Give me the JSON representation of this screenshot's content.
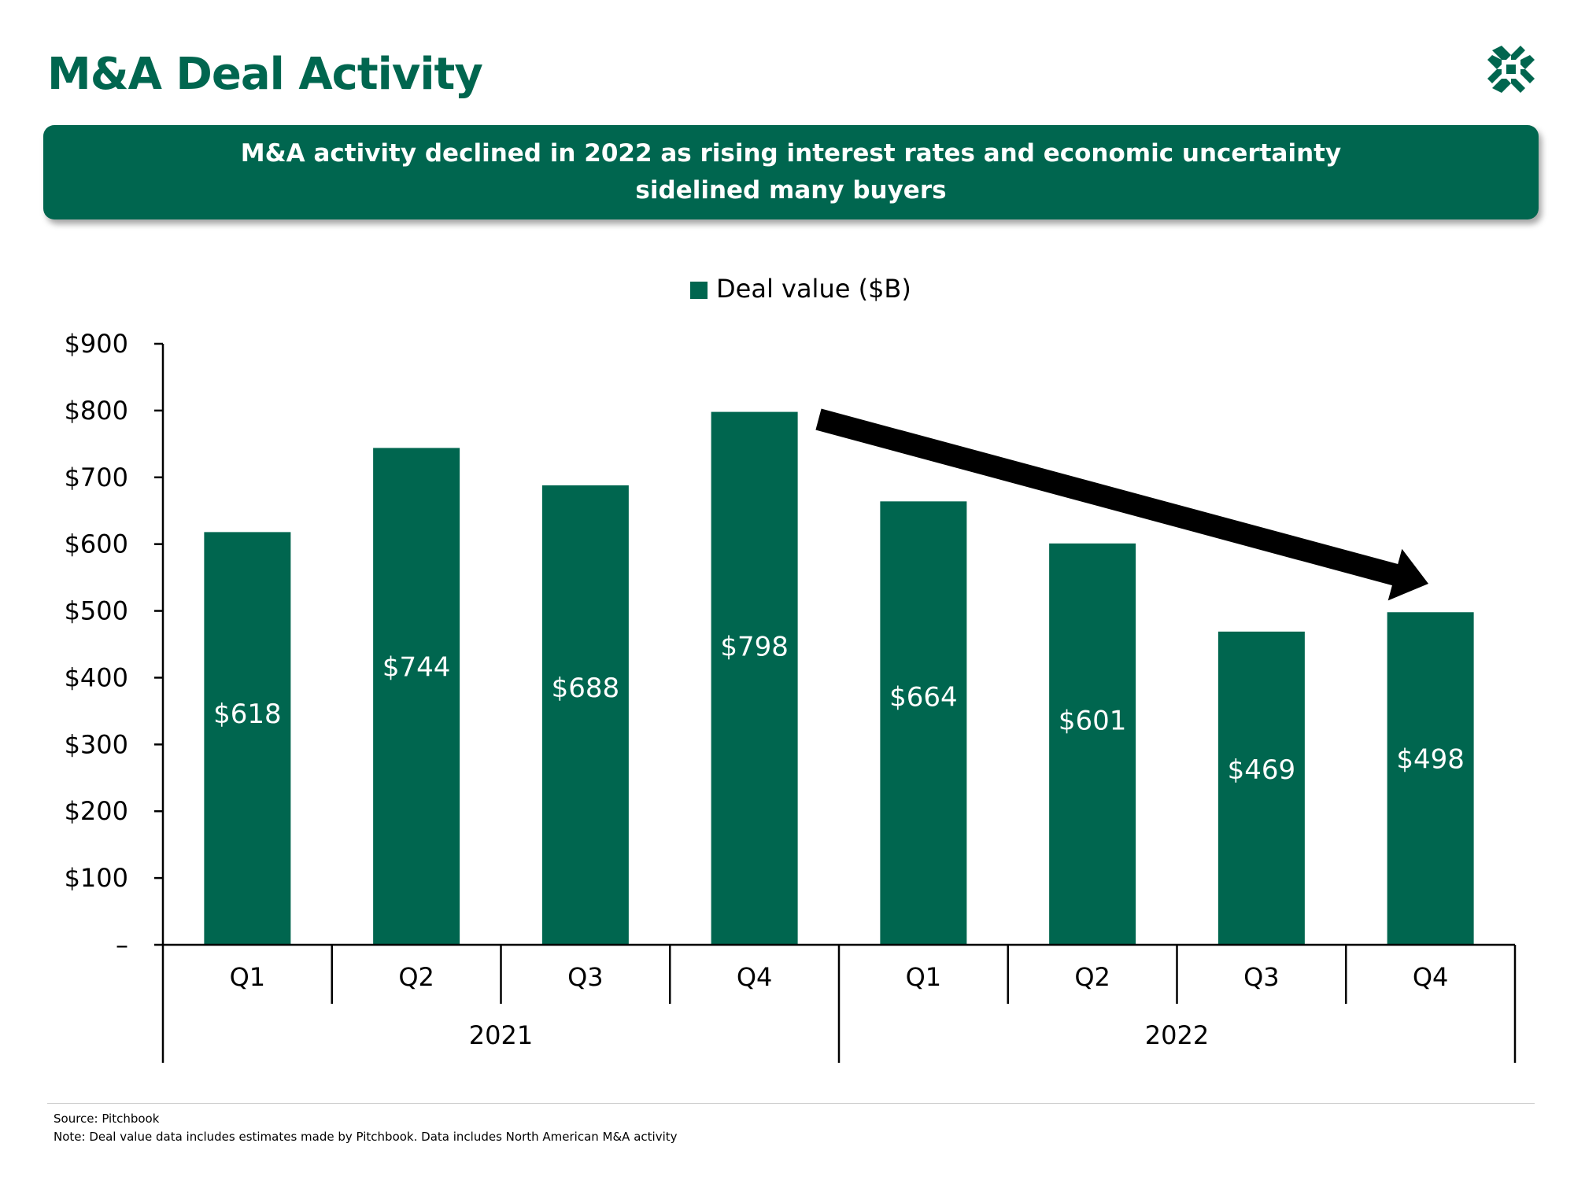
{
  "page": {
    "title": "M&A Deal Activity",
    "banner": "M&A activity declined in 2022 as rising interest rates and economic uncertainty sidelined many buyers",
    "source": "Source: Pitchbook",
    "note": "Note: Deal value data includes estimates made by Pitchbook. Data includes North American M&A activity"
  },
  "colors": {
    "brand": "#00664f",
    "bar": "#00664f",
    "bar_label": "#ffffff",
    "arrow": "#000000",
    "axis": "#000000"
  },
  "icons": {
    "logo": "logo-icon",
    "trend": "down-arrow-icon"
  },
  "chart_data": {
    "type": "bar",
    "categories": [
      "Q1",
      "Q2",
      "Q3",
      "Q4",
      "Q1",
      "Q2",
      "Q3",
      "Q4"
    ],
    "groups": [
      {
        "label": "2021",
        "categories": [
          "Q1",
          "Q2",
          "Q3",
          "Q4"
        ]
      },
      {
        "label": "2022",
        "categories": [
          "Q1",
          "Q2",
          "Q3",
          "Q4"
        ]
      }
    ],
    "series": [
      {
        "name": "Deal value ($B)",
        "values": [
          618,
          744,
          688,
          798,
          664,
          601,
          469,
          498
        ],
        "labels": [
          "$618",
          "$744",
          "$688",
          "$798",
          "$664",
          "$601",
          "$469",
          "$498"
        ]
      }
    ],
    "ylim": [
      0,
      900
    ],
    "yticks": [
      0,
      100,
      200,
      300,
      400,
      500,
      600,
      700,
      800,
      900
    ],
    "ytick_labels": [
      "–",
      "$100",
      "$200",
      "$300",
      "$400",
      "$500",
      "$600",
      "$700",
      "$800",
      "$900"
    ],
    "legend": "top-center",
    "grid": false,
    "annotation": "downward trend arrow from 2021 Q4 to 2022 Q4"
  }
}
